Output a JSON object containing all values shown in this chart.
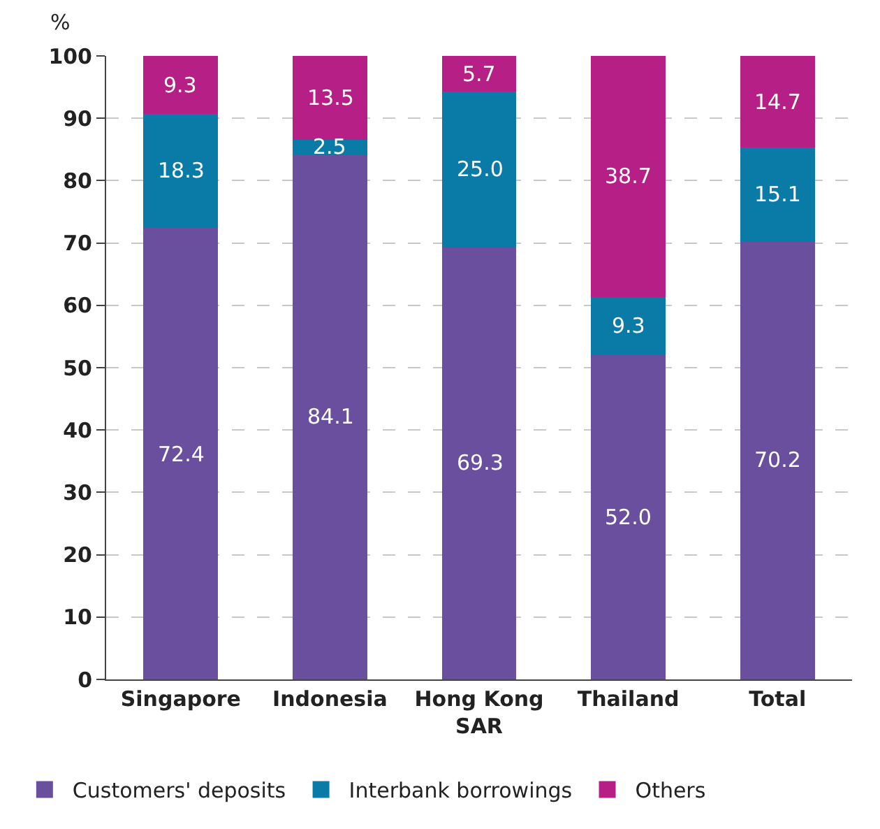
{
  "chart_data": {
    "type": "bar",
    "stacked": true,
    "ylabel": "%",
    "categories": [
      "Singapore",
      "Indonesia",
      "Hong Kong SAR",
      "Thailand",
      "Total"
    ],
    "series": [
      {
        "name": "Customers' deposits",
        "color": "#6a4f9e",
        "values": [
          72.4,
          84.1,
          69.3,
          52.0,
          70.2
        ],
        "value_labels": [
          "72.4",
          "84.1",
          "69.3",
          "52.0",
          "70.2"
        ]
      },
      {
        "name": "Interbank borrowings",
        "color": "#0a7aa6",
        "values": [
          18.3,
          2.5,
          25.0,
          9.3,
          15.1
        ],
        "value_labels": [
          "18.3",
          "2.5",
          "25.0",
          "9.3",
          "15.1"
        ]
      },
      {
        "name": "Others",
        "color": "#b51f86",
        "values": [
          9.3,
          13.5,
          5.7,
          38.7,
          14.7
        ],
        "value_labels": [
          "9.3",
          "13.5",
          "5.7",
          "38.7",
          "14.7"
        ]
      }
    ],
    "ylim": [
      0,
      100
    ],
    "yticks": [
      0,
      10,
      20,
      30,
      40,
      50,
      60,
      70,
      80,
      90,
      100
    ],
    "grid": "y",
    "legend": "bottom"
  }
}
